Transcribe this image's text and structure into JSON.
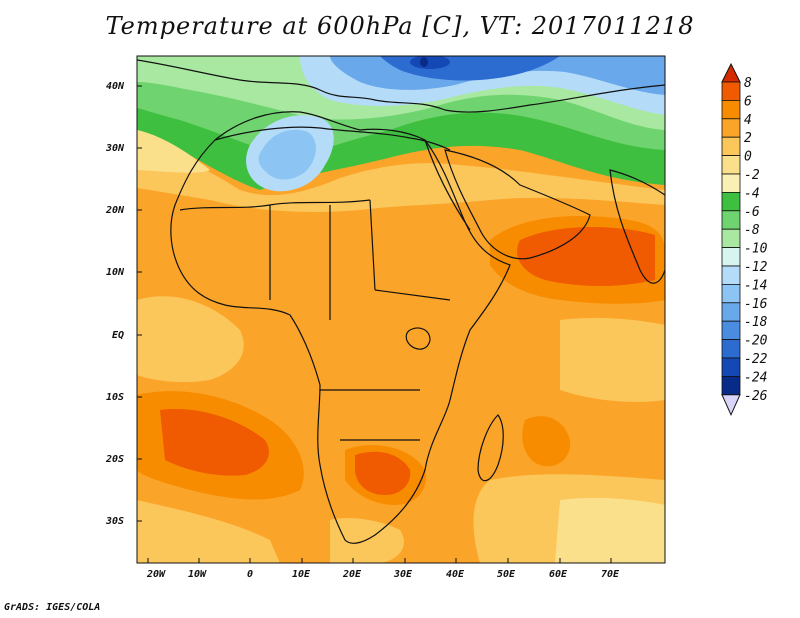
{
  "map": {
    "title": "Temperature at 600hPa [C], VT: 2017011218",
    "footer": "GrADS: IGES/COLA",
    "lon_labels": [
      "20W",
      "10W",
      "0",
      "10E",
      "20E",
      "30E",
      "40E",
      "50E",
      "60E",
      "70E"
    ],
    "lat_labels": [
      "40N",
      "30N",
      "20N",
      "10N",
      "EQ",
      "10S",
      "20S",
      "30S"
    ],
    "region": "Africa",
    "lon_range": [
      -23,
      80
    ],
    "lat_range": [
      -37,
      45
    ]
  },
  "colorbar": {
    "labels": [
      "8",
      "6",
      "4",
      "2",
      "0",
      "-2",
      "-4",
      "-6",
      "-8",
      "-10",
      "-12",
      "-14",
      "-16",
      "-18",
      "-20",
      "-22",
      "-24",
      "-26"
    ],
    "colors": [
      "#d62a00",
      "#f05a00",
      "#f88c00",
      "#fba42a",
      "#fbc65a",
      "#fbe08c",
      "#fbf0b4",
      "#3fbf3f",
      "#6fd46f",
      "#a8e8a0",
      "#d8f4f0",
      "#b4dcf8",
      "#8cc4f4",
      "#6aa8ec",
      "#4a8ce0",
      "#2c6cd0",
      "#1448b4",
      "#082a88",
      "#0a0a5e"
    ],
    "top_arrow_color": "#d62a00",
    "bottom_arrow_color": "#d8d4fa"
  }
}
